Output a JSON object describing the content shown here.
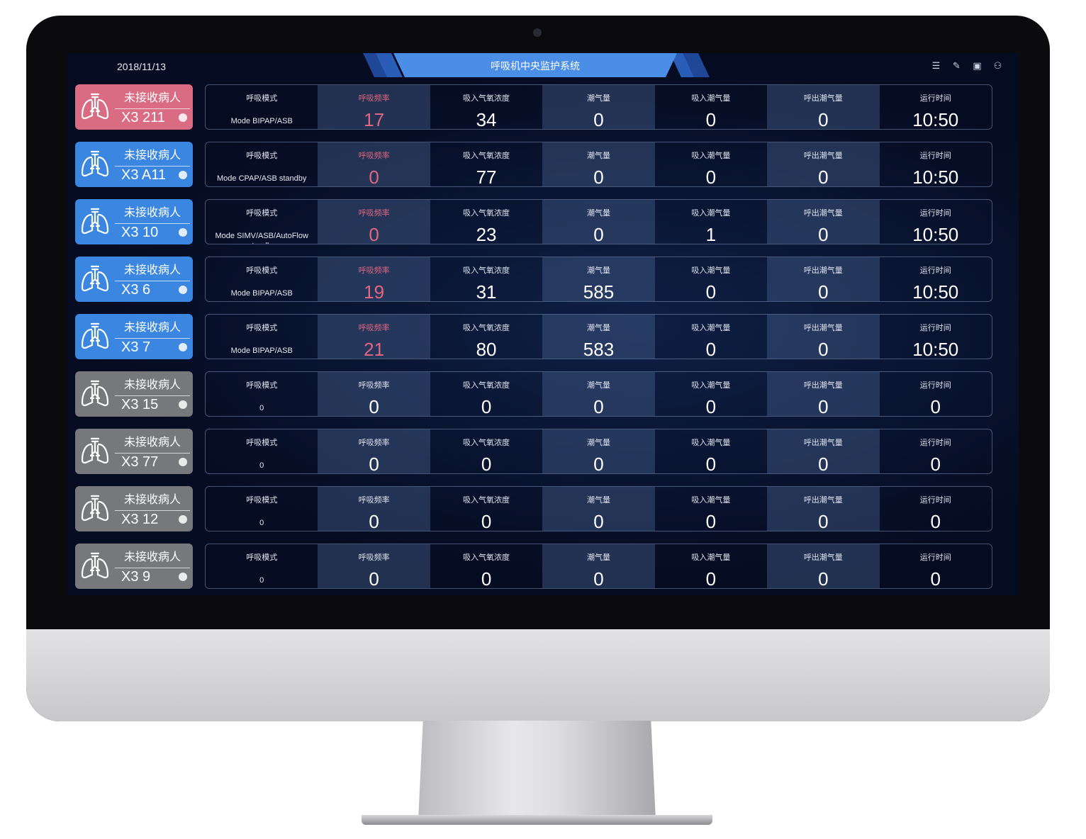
{
  "header": {
    "date": "2018/11/13",
    "title": "呼吸机中央监护系统",
    "icons": [
      "list-icon",
      "edit-icon",
      "layout-icon",
      "user-icon"
    ]
  },
  "colors": {
    "pink": "#d96b82",
    "blue": "#3a86e0",
    "gray": "#77787c",
    "accent": "#e0677f"
  },
  "labels": [
    "呼吸模式",
    "呼吸频率",
    "吸入气氧浓度",
    "潮气量",
    "吸入潮气量",
    "呼出潮气量",
    "运行时间"
  ],
  "rows": [
    {
      "status": "pink",
      "name": "未接收病人",
      "id": "X3 211",
      "mode": "Mode BIPAP/ASB",
      "values": [
        "17",
        "34",
        "0",
        "0",
        "0",
        "10:50"
      ]
    },
    {
      "status": "blue",
      "name": "未接收病人",
      "id": "X3 A11",
      "mode": "Mode CPAP/ASB standby",
      "values": [
        "0",
        "77",
        "0",
        "0",
        "0",
        "10:50"
      ]
    },
    {
      "status": "blue",
      "name": "未接收病人",
      "id": "X3 10",
      "mode": "Mode SIMV/ASB/AutoFlow standby",
      "values": [
        "0",
        "23",
        "0",
        "1",
        "0",
        "10:50"
      ]
    },
    {
      "status": "blue",
      "name": "未接收病人",
      "id": "X3 6",
      "mode": "Mode BIPAP/ASB",
      "values": [
        "19",
        "31",
        "585",
        "0",
        "0",
        "10:50"
      ]
    },
    {
      "status": "blue",
      "name": "未接收病人",
      "id": "X3 7",
      "mode": "Mode BIPAP/ASB",
      "values": [
        "21",
        "80",
        "583",
        "0",
        "0",
        "10:50"
      ]
    },
    {
      "status": "gray",
      "name": "未接收病人",
      "id": "X3 15",
      "mode": "0",
      "values": [
        "0",
        "0",
        "0",
        "0",
        "0",
        "0"
      ]
    },
    {
      "status": "gray",
      "name": "未接收病人",
      "id": "X3 77",
      "mode": "0",
      "values": [
        "0",
        "0",
        "0",
        "0",
        "0",
        "0"
      ]
    },
    {
      "status": "gray",
      "name": "未接收病人",
      "id": "X3 12",
      "mode": "0",
      "values": [
        "0",
        "0",
        "0",
        "0",
        "0",
        "0"
      ]
    },
    {
      "status": "gray",
      "name": "未接收病人",
      "id": "X3 9",
      "mode": "0",
      "values": [
        "0",
        "0",
        "0",
        "0",
        "0",
        "0"
      ]
    }
  ]
}
